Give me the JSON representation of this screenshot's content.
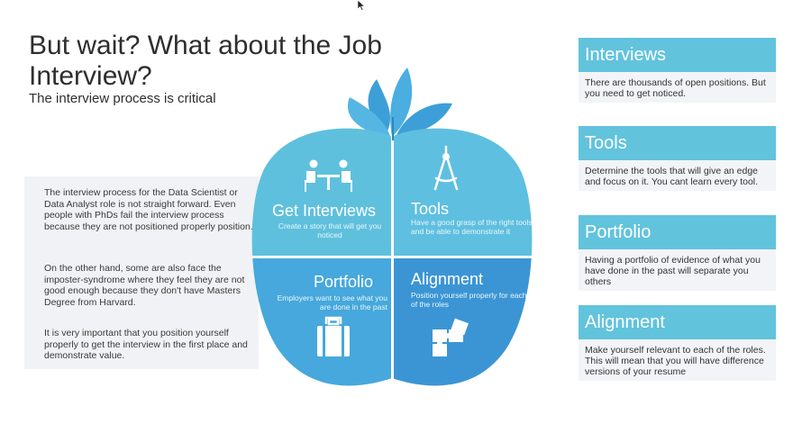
{
  "header": {
    "title": "But wait? What about the Job Interview?",
    "subtitle": "The interview process is critical"
  },
  "left_panel": {
    "paragraphs": [
      "The interview process for the Data Scientist or Data Analyst role is not straight forward. Even people with PhDs fail the interview process because they are not positioned properly position.",
      "On the other hand, some are also face the imposter-syndrome where they feel they are not good enough because they don't have Masters Degree from Harvard.",
      "It is very important that you position yourself properly to get the interview in the first place and demonstrate value."
    ]
  },
  "diagram": {
    "segments": [
      {
        "title": "Get Interviews",
        "desc": "Create a story that will get you noticed",
        "icon": "meeting-icon"
      },
      {
        "title": "Tools",
        "desc": "Have a good grasp of the right tools and be able to demonstrate it",
        "icon": "compass-icon"
      },
      {
        "title": "Portfolio",
        "desc": "Employers want to see what you are done in the past",
        "icon": "briefcase-icon"
      },
      {
        "title": "Alignment",
        "desc": "Position yourself properly for each of the roles",
        "icon": "puzzle-icon"
      }
    ]
  },
  "cards": [
    {
      "title": "Interviews",
      "body": "There are thousands of open positions. But you need to get noticed."
    },
    {
      "title": "Tools",
      "body": "Determine the tools that will give an edge and focus on it. You cant learn every tool."
    },
    {
      "title": "Portfolio",
      "body": "Having a portfolio of evidence of what you have done in the past will separate you others"
    },
    {
      "title": "Alignment",
      "body": "Make yourself relevant to each of the roles. This will mean that you will have difference versions of your resume"
    }
  ],
  "colors": {
    "light_blue": "#5fc0dd",
    "mid_blue": "#46a8dc",
    "dark_blue": "#3b95d4",
    "leaf": "#3d9fd7",
    "card_header": "#62c3dc",
    "panel_bg": "#f1f2f5"
  }
}
